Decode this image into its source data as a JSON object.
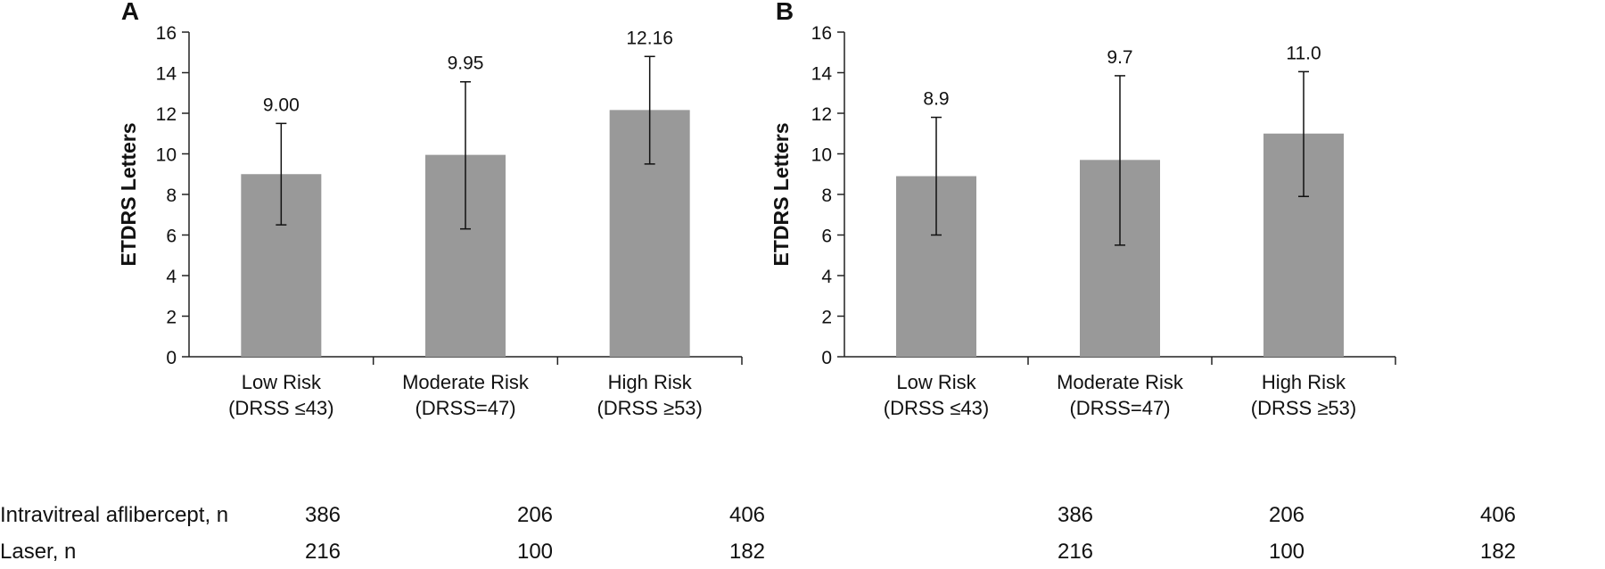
{
  "chart_data": [
    {
      "panel": "A",
      "type": "bar",
      "ylabel": "ETDRS Letters",
      "ylim": [
        0,
        16
      ],
      "yticks": [
        "0",
        "2",
        "4",
        "6",
        "8",
        "10",
        "12",
        "14",
        "16"
      ],
      "categories": [
        {
          "line1": "Low Risk",
          "line2": "(DRSS ≤43)"
        },
        {
          "line1": "Moderate Risk",
          "line2": "(DRSS=47)"
        },
        {
          "line1": "High Risk",
          "line2": "(DRSS ≥53)"
        }
      ],
      "values": [
        9.0,
        9.95,
        12.16
      ],
      "value_labels": [
        "9.00",
        "9.95",
        "12.16"
      ],
      "error_low": [
        6.5,
        6.3,
        9.5
      ],
      "error_high": [
        11.5,
        13.55,
        14.8
      ],
      "grid": false,
      "bar_color": "#999999"
    },
    {
      "panel": "B",
      "type": "bar",
      "ylabel": "ETDRS Letters",
      "ylim": [
        0,
        16
      ],
      "yticks": [
        "0",
        "2",
        "4",
        "6",
        "8",
        "10",
        "12",
        "14",
        "16"
      ],
      "categories": [
        {
          "line1": "Low Risk",
          "line2": "(DRSS ≤43)"
        },
        {
          "line1": "Moderate Risk",
          "line2": "(DRSS=47)"
        },
        {
          "line1": "High Risk",
          "line2": "(DRSS ≥53)"
        }
      ],
      "values": [
        8.9,
        9.7,
        11.0
      ],
      "value_labels": [
        "8.9",
        "9.7",
        "11.0"
      ],
      "error_low": [
        6.0,
        5.5,
        7.9
      ],
      "error_high": [
        11.8,
        13.85,
        14.05
      ],
      "grid": false,
      "bar_color": "#999999"
    }
  ],
  "n_table": {
    "rows": [
      {
        "label": "Intravitreal aflibercept, n",
        "values": [
          "386",
          "206",
          "406"
        ]
      },
      {
        "label": "Laser, n",
        "values": [
          "216",
          "100",
          "182"
        ]
      }
    ]
  }
}
